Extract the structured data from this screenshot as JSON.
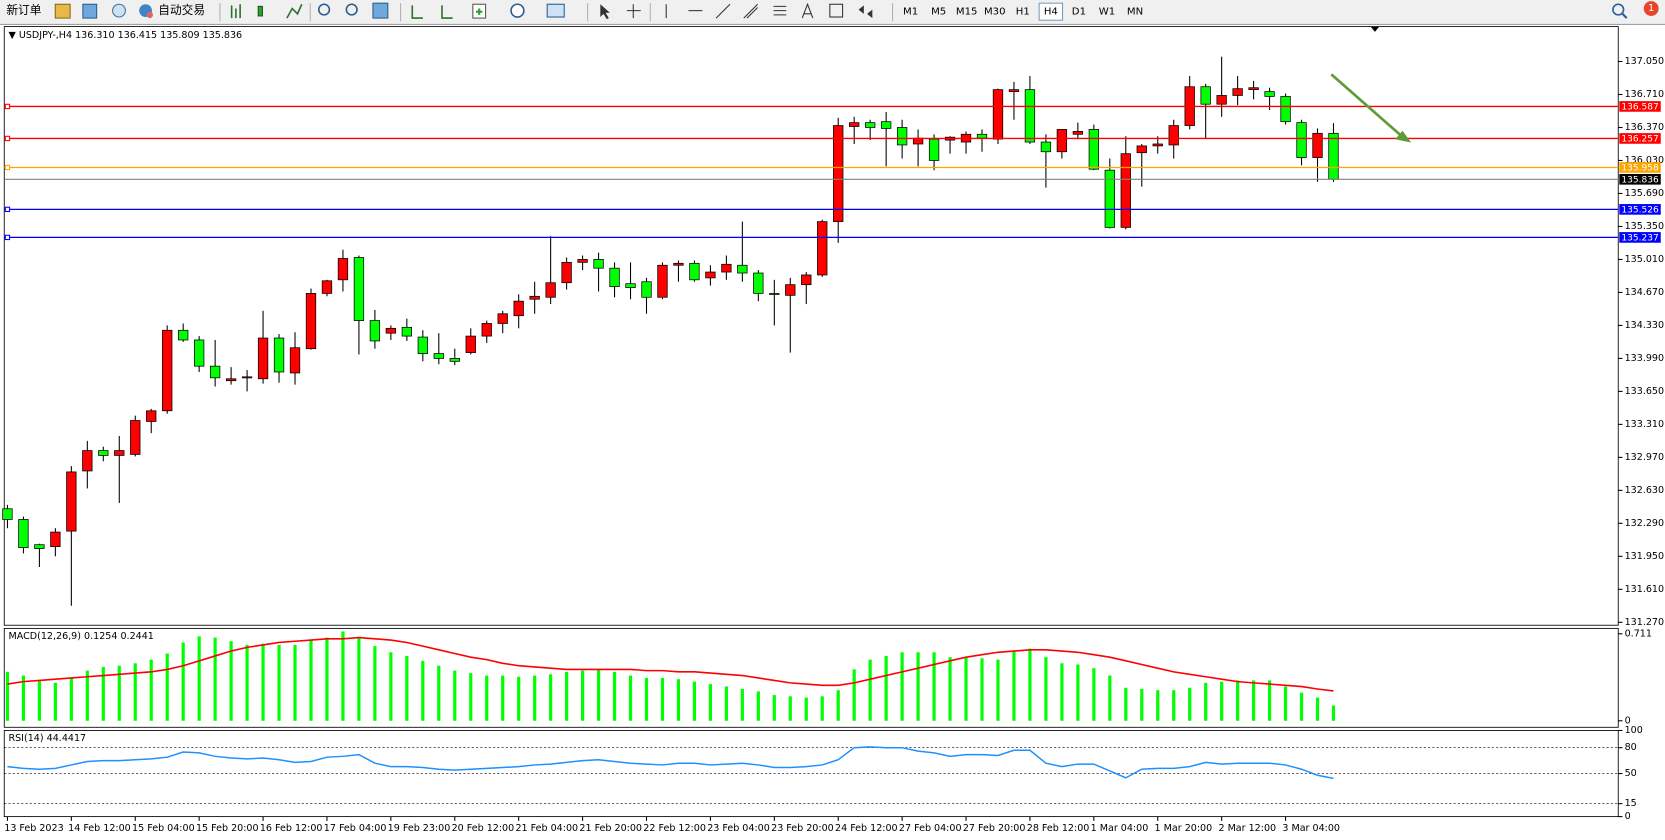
{
  "toolbar": {
    "new_order": "新订单",
    "auto_trading": "自动交易",
    "timeframes": [
      "M1",
      "M5",
      "M15",
      "M30",
      "H1",
      "H4",
      "D1",
      "W1",
      "MN"
    ],
    "active_timeframe": "H4",
    "notification_count": 1
  },
  "chart_data": [
    {
      "type": "candlestick",
      "title": "USDJPY-,H4",
      "header_open": "136.310",
      "categories": [
        "13 Feb 2023",
        null,
        null,
        null,
        "14 Feb 12:00",
        null,
        null,
        null,
        "15 Feb 04:00",
        null,
        null,
        null,
        "15 Feb 20:00",
        null,
        null,
        null,
        "16 Feb 12:00",
        null,
        null,
        null,
        "17 Feb 04:00",
        null,
        null,
        null,
        "19 Feb 23:00",
        null,
        null,
        null,
        "20 Feb 12:00",
        null,
        null,
        null,
        "21 Feb 04:00",
        null,
        null,
        null,
        "21 Feb 20:00",
        null,
        null,
        null,
        "22 Feb 12:00",
        null,
        null,
        null,
        "23 Feb 04:00",
        null,
        null,
        null,
        "23 Feb 20:00",
        null,
        null,
        null,
        "24 Feb 12:00",
        null,
        null,
        null,
        "27 Feb 04:00",
        null,
        null,
        null,
        "27 Feb 20:00",
        null,
        null,
        null,
        "28 Feb 12:00",
        null,
        null,
        null,
        "1 Mar 04:00",
        null,
        null,
        null,
        "1 Mar 20:00",
        null,
        null,
        null,
        "2 Mar 12:00",
        null,
        null,
        null,
        "3 Mar 04:00",
        null,
        null,
        null
      ],
      "open": [
        132.44,
        132.33,
        132.07,
        132.05,
        132.21,
        132.83,
        133.04,
        132.99,
        133.0,
        133.34,
        133.45,
        134.28,
        134.18,
        133.91,
        133.76,
        133.79,
        133.78,
        134.2,
        133.84,
        134.09,
        134.66,
        134.8,
        135.03,
        134.38,
        134.25,
        134.31,
        134.21,
        134.04,
        133.99,
        134.05,
        134.22,
        134.35,
        134.43,
        134.6,
        134.62,
        134.77,
        134.98,
        135.01,
        134.92,
        134.76,
        134.78,
        134.62,
        134.95,
        134.97,
        134.82,
        134.88,
        134.95,
        134.87,
        134.66,
        134.64,
        134.75,
        134.85,
        135.4,
        136.38,
        136.42,
        136.43,
        136.37,
        136.2,
        136.25,
        136.24,
        136.22,
        136.3,
        136.25,
        136.74,
        136.76,
        136.22,
        136.12,
        136.3,
        136.35,
        135.93,
        135.34,
        136.11,
        136.18,
        136.19,
        136.39,
        136.79,
        136.61,
        136.7,
        136.76,
        136.74,
        136.69,
        136.42,
        136.06,
        136.31
      ],
      "high": [
        132.48,
        132.36,
        132.08,
        132.24,
        132.88,
        133.14,
        133.08,
        133.19,
        133.4,
        133.47,
        134.33,
        134.35,
        134.22,
        134.18,
        133.9,
        133.87,
        134.48,
        134.24,
        134.26,
        134.71,
        134.8,
        135.11,
        135.05,
        134.49,
        134.33,
        134.4,
        134.28,
        134.25,
        134.09,
        134.3,
        134.38,
        134.48,
        134.65,
        134.78,
        135.25,
        135.03,
        135.05,
        135.08,
        134.98,
        134.98,
        134.82,
        134.98,
        135.0,
        135.0,
        134.95,
        135.05,
        135.4,
        134.9,
        134.8,
        134.82,
        134.88,
        135.42,
        136.47,
        136.48,
        136.45,
        136.53,
        136.45,
        136.35,
        136.3,
        136.28,
        136.33,
        136.35,
        136.77,
        136.84,
        136.9,
        136.3,
        136.35,
        136.42,
        136.4,
        136.05,
        136.28,
        136.2,
        136.28,
        136.45,
        136.9,
        136.82,
        137.1,
        136.9,
        136.85,
        136.78,
        136.72,
        136.45,
        136.36,
        136.415
      ],
      "low": [
        132.24,
        131.98,
        131.84,
        131.95,
        131.44,
        132.65,
        132.93,
        132.5,
        132.98,
        133.22,
        133.42,
        134.16,
        133.85,
        133.7,
        133.72,
        133.65,
        133.73,
        133.74,
        133.72,
        134.08,
        134.63,
        134.68,
        134.03,
        134.09,
        134.18,
        134.17,
        133.96,
        133.93,
        133.92,
        134.03,
        134.15,
        134.25,
        134.3,
        134.45,
        134.55,
        134.7,
        134.9,
        134.68,
        134.62,
        134.6,
        134.45,
        134.6,
        134.78,
        134.78,
        134.74,
        134.8,
        134.78,
        134.58,
        134.33,
        134.05,
        134.55,
        134.83,
        135.18,
        136.2,
        136.24,
        135.97,
        136.05,
        135.97,
        135.93,
        136.1,
        136.1,
        136.12,
        136.2,
        136.45,
        136.2,
        135.75,
        136.05,
        136.25,
        135.93,
        135.33,
        135.32,
        135.76,
        136.1,
        136.05,
        136.35,
        136.25,
        136.48,
        136.6,
        136.66,
        136.55,
        136.4,
        135.98,
        135.81,
        135.809
      ],
      "close": [
        132.33,
        132.04,
        132.03,
        132.2,
        132.82,
        133.04,
        132.99,
        133.04,
        133.35,
        133.45,
        134.28,
        134.18,
        133.91,
        133.79,
        133.78,
        133.8,
        134.2,
        133.85,
        134.1,
        134.66,
        134.79,
        135.02,
        134.38,
        134.17,
        134.3,
        134.22,
        134.04,
        133.99,
        133.96,
        134.22,
        134.35,
        134.45,
        134.58,
        134.63,
        134.77,
        134.98,
        135.01,
        134.92,
        134.73,
        134.72,
        134.62,
        134.95,
        134.97,
        134.8,
        134.88,
        134.96,
        134.87,
        134.66,
        134.65,
        134.75,
        134.85,
        135.4,
        136.39,
        136.42,
        136.37,
        136.36,
        136.19,
        136.26,
        136.03,
        136.27,
        136.3,
        136.26,
        136.76,
        136.76,
        136.22,
        136.12,
        136.35,
        136.33,
        135.94,
        135.34,
        136.1,
        136.18,
        136.2,
        136.39,
        136.79,
        136.61,
        136.7,
        136.77,
        136.78,
        136.69,
        136.43,
        136.06,
        136.31,
        135.836
      ],
      "up_color": "#ff0000",
      "down_color": "#00ff00",
      "wick_color": "#000000",
      "current_color": "#808080",
      "levels": [
        {
          "value": 136.587,
          "color": "#ff0000"
        },
        {
          "value": 136.257,
          "color": "#ff0000"
        },
        {
          "value": 135.958,
          "color": "#ffa500"
        },
        {
          "value": 135.526,
          "color": "#0000ff"
        },
        {
          "value": 135.237,
          "color": "#0000ff"
        }
      ],
      "ylim": [
        131.24,
        137.41
      ],
      "yticks": [
        {
          "value": 137.05,
          "label": "137.050"
        },
        {
          "value": 136.71,
          "label": "136.710"
        },
        {
          "value": 136.37,
          "label": "136.370"
        },
        {
          "value": 136.03,
          "label": "136.030"
        },
        {
          "value": 135.69,
          "label": "135.690"
        },
        {
          "value": 135.35,
          "label": "135.350"
        },
        {
          "value": 135.01,
          "label": "135.010"
        },
        {
          "value": 134.67,
          "label": "134.670"
        },
        {
          "value": 134.33,
          "label": "134.330"
        },
        {
          "value": 133.99,
          "label": "133.990"
        },
        {
          "value": 133.65,
          "label": "133.650"
        },
        {
          "value": 133.31,
          "label": "133.310"
        },
        {
          "value": 132.97,
          "label": "132.970"
        },
        {
          "value": 132.63,
          "label": "132.630"
        },
        {
          "value": 132.29,
          "label": "132.290"
        },
        {
          "value": 131.95,
          "label": "131.950"
        },
        {
          "value": 131.61,
          "label": "131.610"
        },
        {
          "value": 131.27,
          "label": "131.270"
        }
      ]
    },
    {
      "type": "macd",
      "title": "MACD(12,26,9)",
      "histogram_color": "#00ff00",
      "signal_color": "#ff0000",
      "histogram_values": [
        0.4,
        0.37,
        0.33,
        0.31,
        0.35,
        0.41,
        0.44,
        0.45,
        0.47,
        0.5,
        0.55,
        0.64,
        0.69,
        0.68,
        0.65,
        0.62,
        0.63,
        0.62,
        0.62,
        0.66,
        0.68,
        0.73,
        0.68,
        0.61,
        0.56,
        0.53,
        0.49,
        0.45,
        0.41,
        0.39,
        0.37,
        0.37,
        0.36,
        0.37,
        0.38,
        0.4,
        0.41,
        0.42,
        0.4,
        0.37,
        0.35,
        0.35,
        0.34,
        0.32,
        0.3,
        0.28,
        0.26,
        0.24,
        0.21,
        0.2,
        0.19,
        0.2,
        0.25,
        0.42,
        0.5,
        0.53,
        0.56,
        0.56,
        0.56,
        0.52,
        0.52,
        0.51,
        0.5,
        0.57,
        0.59,
        0.52,
        0.47,
        0.46,
        0.43,
        0.37,
        0.27,
        0.26,
        0.25,
        0.25,
        0.27,
        0.31,
        0.32,
        0.33,
        0.33,
        0.33,
        0.28,
        0.23,
        0.19,
        0.1254
      ],
      "signal_values": [
        0.3,
        0.32,
        0.33,
        0.34,
        0.35,
        0.36,
        0.37,
        0.38,
        0.39,
        0.4,
        0.42,
        0.45,
        0.49,
        0.53,
        0.57,
        0.6,
        0.62,
        0.64,
        0.65,
        0.66,
        0.67,
        0.67,
        0.68,
        0.67,
        0.66,
        0.64,
        0.61,
        0.58,
        0.55,
        0.52,
        0.5,
        0.47,
        0.45,
        0.44,
        0.43,
        0.42,
        0.42,
        0.42,
        0.42,
        0.42,
        0.41,
        0.41,
        0.4,
        0.4,
        0.39,
        0.38,
        0.37,
        0.35,
        0.33,
        0.31,
        0.3,
        0.29,
        0.29,
        0.31,
        0.34,
        0.37,
        0.4,
        0.43,
        0.46,
        0.49,
        0.52,
        0.54,
        0.56,
        0.57,
        0.58,
        0.58,
        0.57,
        0.56,
        0.54,
        0.52,
        0.49,
        0.46,
        0.43,
        0.4,
        0.38,
        0.36,
        0.34,
        0.32,
        0.31,
        0.3,
        0.29,
        0.28,
        0.26,
        0.2441
      ],
      "ylim": [
        -0.053,
        0.755
      ],
      "yticks": [
        0.711,
        0
      ]
    },
    {
      "type": "rsi",
      "title": "RSI(14)",
      "color": "#1e90ff",
      "values": [
        58,
        56,
        55,
        56,
        60,
        64,
        65,
        65,
        66,
        67,
        69,
        75,
        74,
        70,
        68,
        67,
        68,
        66,
        63,
        64,
        69,
        70,
        72,
        62,
        58,
        58,
        57,
        55,
        54,
        55,
        56,
        57,
        58,
        60,
        61,
        63,
        65,
        66,
        64,
        62,
        61,
        60,
        62,
        62,
        60,
        61,
        62,
        60,
        57,
        57,
        58,
        60,
        66,
        80,
        81,
        80,
        80,
        76,
        74,
        70,
        72,
        72,
        71,
        77,
        77,
        62,
        58,
        61,
        61,
        53,
        45,
        55,
        56,
        56,
        58,
        63,
        61,
        62,
        62,
        62,
        60,
        55,
        48,
        44.4417
      ],
      "ylim": [
        0,
        100
      ],
      "yticks": [
        100,
        80,
        50,
        15,
        0
      ],
      "grid": true
    }
  ]
}
